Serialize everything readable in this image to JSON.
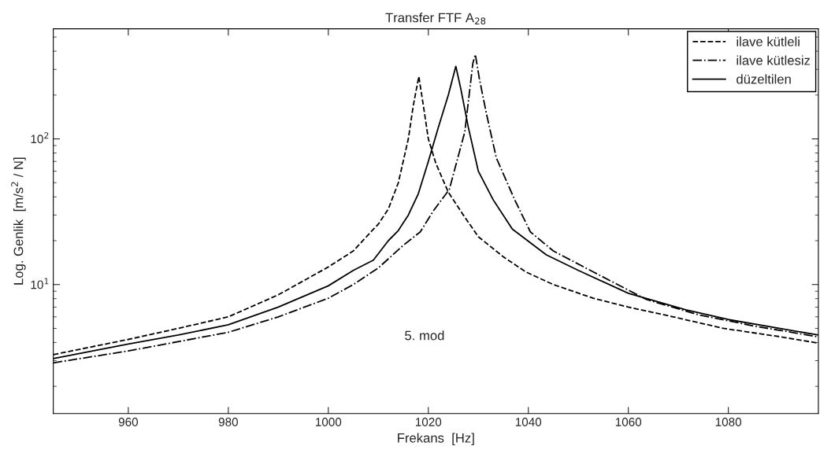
{
  "chart_data": {
    "type": "line",
    "title": "Transfer FTF A$_{28}$",
    "xlabel": "Frekans  [Hz]",
    "ylabel": "Log. Genlik  [m/s$^{2}$ / N]",
    "log": "y",
    "grid": false,
    "legend": "top right",
    "marker": "none",
    "xlim": [
      945,
      1098
    ],
    "xticks": [
      960,
      980,
      1000,
      1020,
      1040,
      1060,
      1080
    ],
    "ylim": [
      1.3,
      570
    ],
    "yticks": [
      {
        "value": 10,
        "label": "10$^{1}$"
      },
      {
        "value": 100,
        "label": "10$^{2}$"
      }
    ],
    "annotations": [
      "5. mod"
    ],
    "series": [
      {
        "name": "ilave kütleli",
        "color": "#000000",
        "line_style": "dashed",
        "x": [
          945,
          960,
          970,
          980,
          990,
          1000,
          1005,
          1008,
          1010,
          1012,
          1014,
          1016,
          1017,
          1018.1,
          1019,
          1020,
          1021.5,
          1024,
          1027,
          1030,
          1035,
          1039.5,
          1045,
          1053,
          1060,
          1069,
          1079,
          1090,
          1098
        ],
        "values": [
          3.3,
          4.2,
          5.0,
          6.0,
          8.5,
          13.2,
          17,
          22,
          26,
          33,
          50,
          100,
          170,
          268,
          170,
          100,
          68,
          43,
          30,
          21.3,
          15.5,
          12.2,
          10,
          8.05,
          7,
          6.0,
          5.0,
          4.4,
          3.96
        ]
      },
      {
        "name": "ilave kütlesiz",
        "color": "#000000",
        "line_style": "dashdot",
        "x": [
          945,
          960,
          980,
          990,
          1000,
          1005,
          1010,
          1015,
          1018.4,
          1021,
          1024.2,
          1027.3,
          1028.9,
          1029.4,
          1030.2,
          1031.6,
          1033.6,
          1037.3,
          1040.4,
          1045,
          1053,
          1063.6,
          1074,
          1085,
          1098
        ],
        "values": [
          2.9,
          3.5,
          4.7,
          6.0,
          8.05,
          10,
          13,
          18.6,
          23,
          32,
          45,
          112,
          330,
          380,
          260,
          150,
          74,
          38,
          23,
          17,
          12.2,
          7.9,
          6.2,
          5.2,
          4.37
        ]
      },
      {
        "name": "düzeltilen",
        "color": "#000000",
        "line_style": "solid",
        "x": [
          945,
          960,
          970,
          980,
          990,
          1000,
          1005,
          1009,
          1012,
          1014,
          1016,
          1018,
          1020,
          1022,
          1024,
          1025.5,
          1026.5,
          1028,
          1030,
          1033,
          1036.8,
          1043.6,
          1050,
          1060,
          1071.5,
          1080,
          1098
        ],
        "values": [
          3.1,
          3.9,
          4.5,
          5.3,
          7.0,
          9.8,
          12.5,
          14.7,
          20,
          23.5,
          30,
          42,
          70,
          120,
          200,
          315,
          220,
          120,
          60,
          38,
          24,
          16,
          12.5,
          8.7,
          6.7,
          5.75,
          4.5
        ]
      }
    ]
  }
}
